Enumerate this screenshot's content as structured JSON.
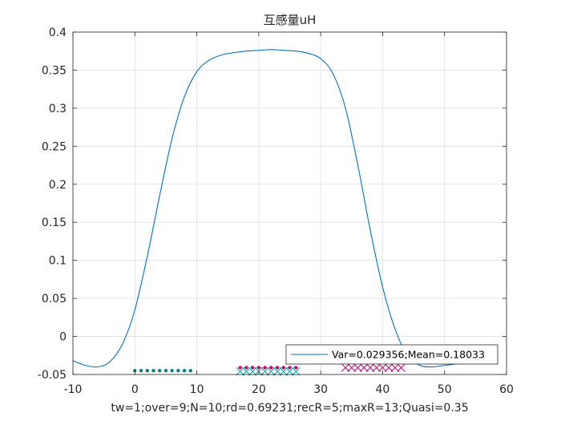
{
  "chart_data": {
    "type": "line",
    "title": "互感量uH",
    "xlabel": "tw=1;over=9;N=10;rd=0.69231;recR=5;maxR=13;Quasi=0.35",
    "ylabel": "",
    "xlim": [
      -10,
      60
    ],
    "ylim": [
      -0.05,
      0.4
    ],
    "xticks": [
      -10,
      0,
      10,
      20,
      30,
      40,
      50,
      60
    ],
    "xtick_labels": [
      "-10",
      "0",
      "10",
      "20",
      "30",
      "40",
      "50",
      "60"
    ],
    "yticks": [
      -0.05,
      0,
      0.05,
      0.1,
      0.15,
      0.2,
      0.25,
      0.3,
      0.35,
      0.4
    ],
    "ytick_labels": [
      "-0.05",
      "0",
      "0.05",
      "0.1",
      "0.15",
      "0.2",
      "0.25",
      "0.3",
      "0.35",
      "0.4"
    ],
    "grid": true,
    "legend_position": "bottom-right",
    "series": [
      {
        "name": "Var=0.029356;Mean=0.18033",
        "color": "#0072BD",
        "x": [
          -10,
          -8,
          -6,
          -4,
          -2,
          0,
          2,
          4,
          6,
          8,
          10,
          12,
          14,
          16,
          18,
          20,
          22,
          24,
          26,
          28,
          30,
          32,
          34,
          36,
          38,
          40,
          42,
          44,
          46,
          48,
          50,
          52
        ],
        "y": [
          -0.032,
          -0.038,
          -0.04,
          -0.033,
          -0.01,
          0.035,
          0.105,
          0.185,
          0.26,
          0.315,
          0.348,
          0.363,
          0.37,
          0.373,
          0.375,
          0.376,
          0.377,
          0.376,
          0.375,
          0.372,
          0.365,
          0.345,
          0.3,
          0.225,
          0.14,
          0.065,
          0.01,
          -0.025,
          -0.038,
          -0.04,
          -0.038,
          -0.036
        ]
      }
    ],
    "marker_groups": [
      {
        "marker": "dot",
        "color": "#008080",
        "y": -0.045,
        "x": [
          0,
          1,
          2,
          3,
          4,
          5,
          6,
          7,
          8,
          9
        ]
      },
      {
        "marker": "cross",
        "color": "#00A0A0",
        "y": -0.046,
        "x": [
          17,
          18,
          19,
          20,
          21,
          22,
          23,
          24,
          25,
          26
        ]
      },
      {
        "marker": "dot",
        "color": "#CC0077",
        "y": -0.041,
        "x": [
          17,
          18,
          19,
          20,
          21,
          22,
          23,
          24,
          25,
          26
        ]
      },
      {
        "marker": "cross",
        "color": "#CC0077",
        "y": -0.041,
        "x": [
          34,
          35,
          36,
          37,
          38,
          39,
          40,
          41,
          42,
          43
        ]
      }
    ]
  }
}
